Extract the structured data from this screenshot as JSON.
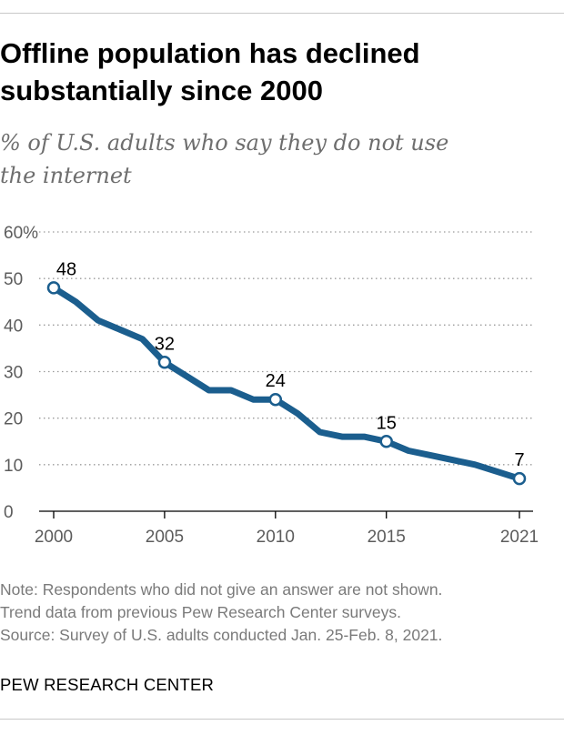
{
  "header": {
    "title_line1": "Offline population has declined",
    "title_line2": "substantially since 2000",
    "subtitle_line1": "% of U.S. adults who say they do not use",
    "subtitle_line2": "the internet"
  },
  "notes": {
    "line1": "Note: Respondents who did not give an answer are not shown.",
    "line2": "Trend data from previous Pew Research Center surveys.",
    "line3": "Source: Survey of U.S. adults conducted Jan. 25-Feb. 8, 2021."
  },
  "footer": {
    "brand": "PEW RESEARCH CENTER"
  },
  "colors": {
    "line": "#1b5e8e",
    "grid": "#9a9a9a",
    "axis": "#000000",
    "tick_text": "#5c5c5c"
  },
  "chart_data": {
    "type": "line",
    "title": "Offline population has declined substantially since 2000",
    "subtitle": "% of U.S. adults who say they do not use the internet",
    "xlabel": "",
    "ylabel": "",
    "xlim": [
      2000,
      2021
    ],
    "ylim": [
      0,
      60
    ],
    "y_ticks": [
      0,
      10,
      20,
      30,
      40,
      50,
      60
    ],
    "y_tick_labels": [
      "0",
      "10",
      "20",
      "30",
      "40",
      "50",
      "60%"
    ],
    "x_ticks": [
      2000,
      2005,
      2010,
      2015,
      2021
    ],
    "x_tick_labels": [
      "2000",
      "2005",
      "2010",
      "2015",
      "2021"
    ],
    "grid": true,
    "legend": "none",
    "series": [
      {
        "x": [
          2000,
          2001,
          2002,
          2003,
          2004,
          2005,
          2006,
          2007,
          2008,
          2009,
          2010,
          2011,
          2012,
          2013,
          2014,
          2015,
          2016,
          2017,
          2018,
          2019,
          2021
        ],
        "values": [
          48,
          45,
          41,
          39,
          37,
          32,
          29,
          26,
          26,
          24,
          24,
          21,
          17,
          16,
          16,
          15,
          13,
          12,
          11,
          10,
          7
        ]
      }
    ],
    "annotations": [
      {
        "x": 2000,
        "y": 48,
        "label": "48"
      },
      {
        "x": 2005,
        "y": 32,
        "label": "32"
      },
      {
        "x": 2010,
        "y": 24,
        "label": "24"
      },
      {
        "x": 2015,
        "y": 15,
        "label": "15"
      },
      {
        "x": 2021,
        "y": 7,
        "label": "7"
      }
    ]
  }
}
